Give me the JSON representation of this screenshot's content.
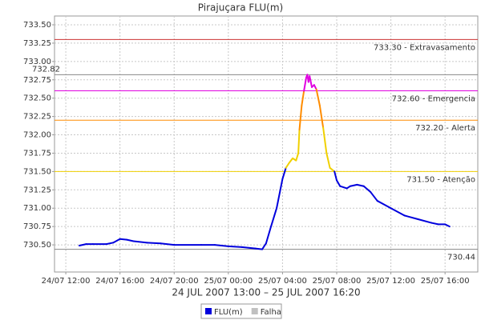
{
  "chart_data": {
    "type": "line",
    "title": "Pirajuçara FLU(m)",
    "subtitle": "24 JUL 2007 13:00 – 25 JUL 2007 16:20",
    "x": [
      "2007-07-24T13:00",
      "2007-07-24T13:30",
      "2007-07-24T14:00",
      "2007-07-24T15:00",
      "2007-07-24T15:30",
      "2007-07-24T16:00",
      "2007-07-24T16:30",
      "2007-07-24T17:00",
      "2007-07-24T18:00",
      "2007-07-24T19:00",
      "2007-07-24T20:00",
      "2007-07-24T22:00",
      "2007-07-24T23:00",
      "2007-07-25T00:00",
      "2007-07-25T01:00",
      "2007-07-25T02:00",
      "2007-07-25T02:30",
      "2007-07-25T02:47",
      "2007-07-25T03:09",
      "2007-07-25T03:34",
      "2007-07-25T04:00",
      "2007-07-25T04:15",
      "2007-07-25T04:30",
      "2007-07-25T04:45",
      "2007-07-25T05:00",
      "2007-07-25T05:10",
      "2007-07-25T05:15",
      "2007-07-25T05:25",
      "2007-07-25T05:35",
      "2007-07-25T05:45",
      "2007-07-25T05:50",
      "2007-07-25T05:55",
      "2007-07-25T06:00",
      "2007-07-25T06:10",
      "2007-07-25T06:20",
      "2007-07-25T06:30",
      "2007-07-25T06:45",
      "2007-07-25T07:00",
      "2007-07-25T07:15",
      "2007-07-25T07:30",
      "2007-07-25T07:50",
      "2007-07-25T08:00",
      "2007-07-25T08:15",
      "2007-07-25T08:45",
      "2007-07-25T09:00",
      "2007-07-25T09:30",
      "2007-07-25T10:00",
      "2007-07-25T10:30",
      "2007-07-25T11:00",
      "2007-07-25T12:00",
      "2007-07-25T13:00",
      "2007-07-25T14:00",
      "2007-07-25T15:00",
      "2007-07-25T15:30",
      "2007-07-25T16:00",
      "2007-07-25T16:20"
    ],
    "series": [
      {
        "name": "FLU(m)",
        "color": "#0000dd",
        "values": [
          730.49,
          730.51,
          730.51,
          730.51,
          730.53,
          730.58,
          730.57,
          730.55,
          730.53,
          730.52,
          730.5,
          730.5,
          730.5,
          730.48,
          730.47,
          730.45,
          730.44,
          730.52,
          730.75,
          731.0,
          731.4,
          731.55,
          731.62,
          731.68,
          731.65,
          731.75,
          732.07,
          732.4,
          732.6,
          732.78,
          732.82,
          732.72,
          732.8,
          732.65,
          732.68,
          732.62,
          732.4,
          732.1,
          731.75,
          731.55,
          731.5,
          731.38,
          731.3,
          731.27,
          731.3,
          731.32,
          731.3,
          731.22,
          731.1,
          731.0,
          730.9,
          730.85,
          730.8,
          730.78,
          730.78,
          730.75
        ]
      }
    ],
    "legend_items": [
      {
        "name": "Falha",
        "color": "#c0c0c0"
      }
    ],
    "thresholds": [
      {
        "value": 733.3,
        "label": "733.30 - Extravasamento",
        "color": "#cc3333"
      },
      {
        "value": 732.6,
        "label": "732.60 - Emergencia",
        "color": "#e000e0"
      },
      {
        "value": 732.2,
        "label": "732.20 - Alerta",
        "color": "#ff8c00"
      },
      {
        "value": 731.5,
        "label": "731.50 - Atenção",
        "color": "#f0d000"
      }
    ],
    "max": 732.82,
    "min": 730.44,
    "xlim": [
      "2007-07-24T11:10",
      "2007-07-25T18:25"
    ],
    "xticks": [
      {
        "value": "2007-07-24T12:00",
        "label": "24/07 12:00"
      },
      {
        "value": "2007-07-24T16:00",
        "label": "24/07 16:00"
      },
      {
        "value": "2007-07-24T20:00",
        "label": "24/07 20:00"
      },
      {
        "value": "2007-07-25T00:00",
        "label": "25/07 00:00"
      },
      {
        "value": "2007-07-25T04:00",
        "label": "25/07 04:00"
      },
      {
        "value": "2007-07-25T08:00",
        "label": "25/07 08:00"
      },
      {
        "value": "2007-07-25T12:00",
        "label": "25/07 12:00"
      },
      {
        "value": "2007-07-25T16:00",
        "label": "25/07 16:00"
      }
    ],
    "ylim": [
      730.13,
      733.62
    ],
    "yticks": [
      {
        "value": 730.5,
        "label": "730.50"
      },
      730.75,
      {
        "value": 731,
        "label": "731.00"
      },
      731.25,
      {
        "value": 731.5,
        "label": "731.50"
      },
      731.75,
      {
        "value": 732,
        "label": "732.00"
      },
      732.25,
      {
        "value": 732.5,
        "label": "732.50"
      },
      732.75,
      {
        "value": 733,
        "label": "733.00"
      },
      733.25,
      {
        "value": 733.5,
        "label": "733.50"
      }
    ],
    "grid": true
  }
}
